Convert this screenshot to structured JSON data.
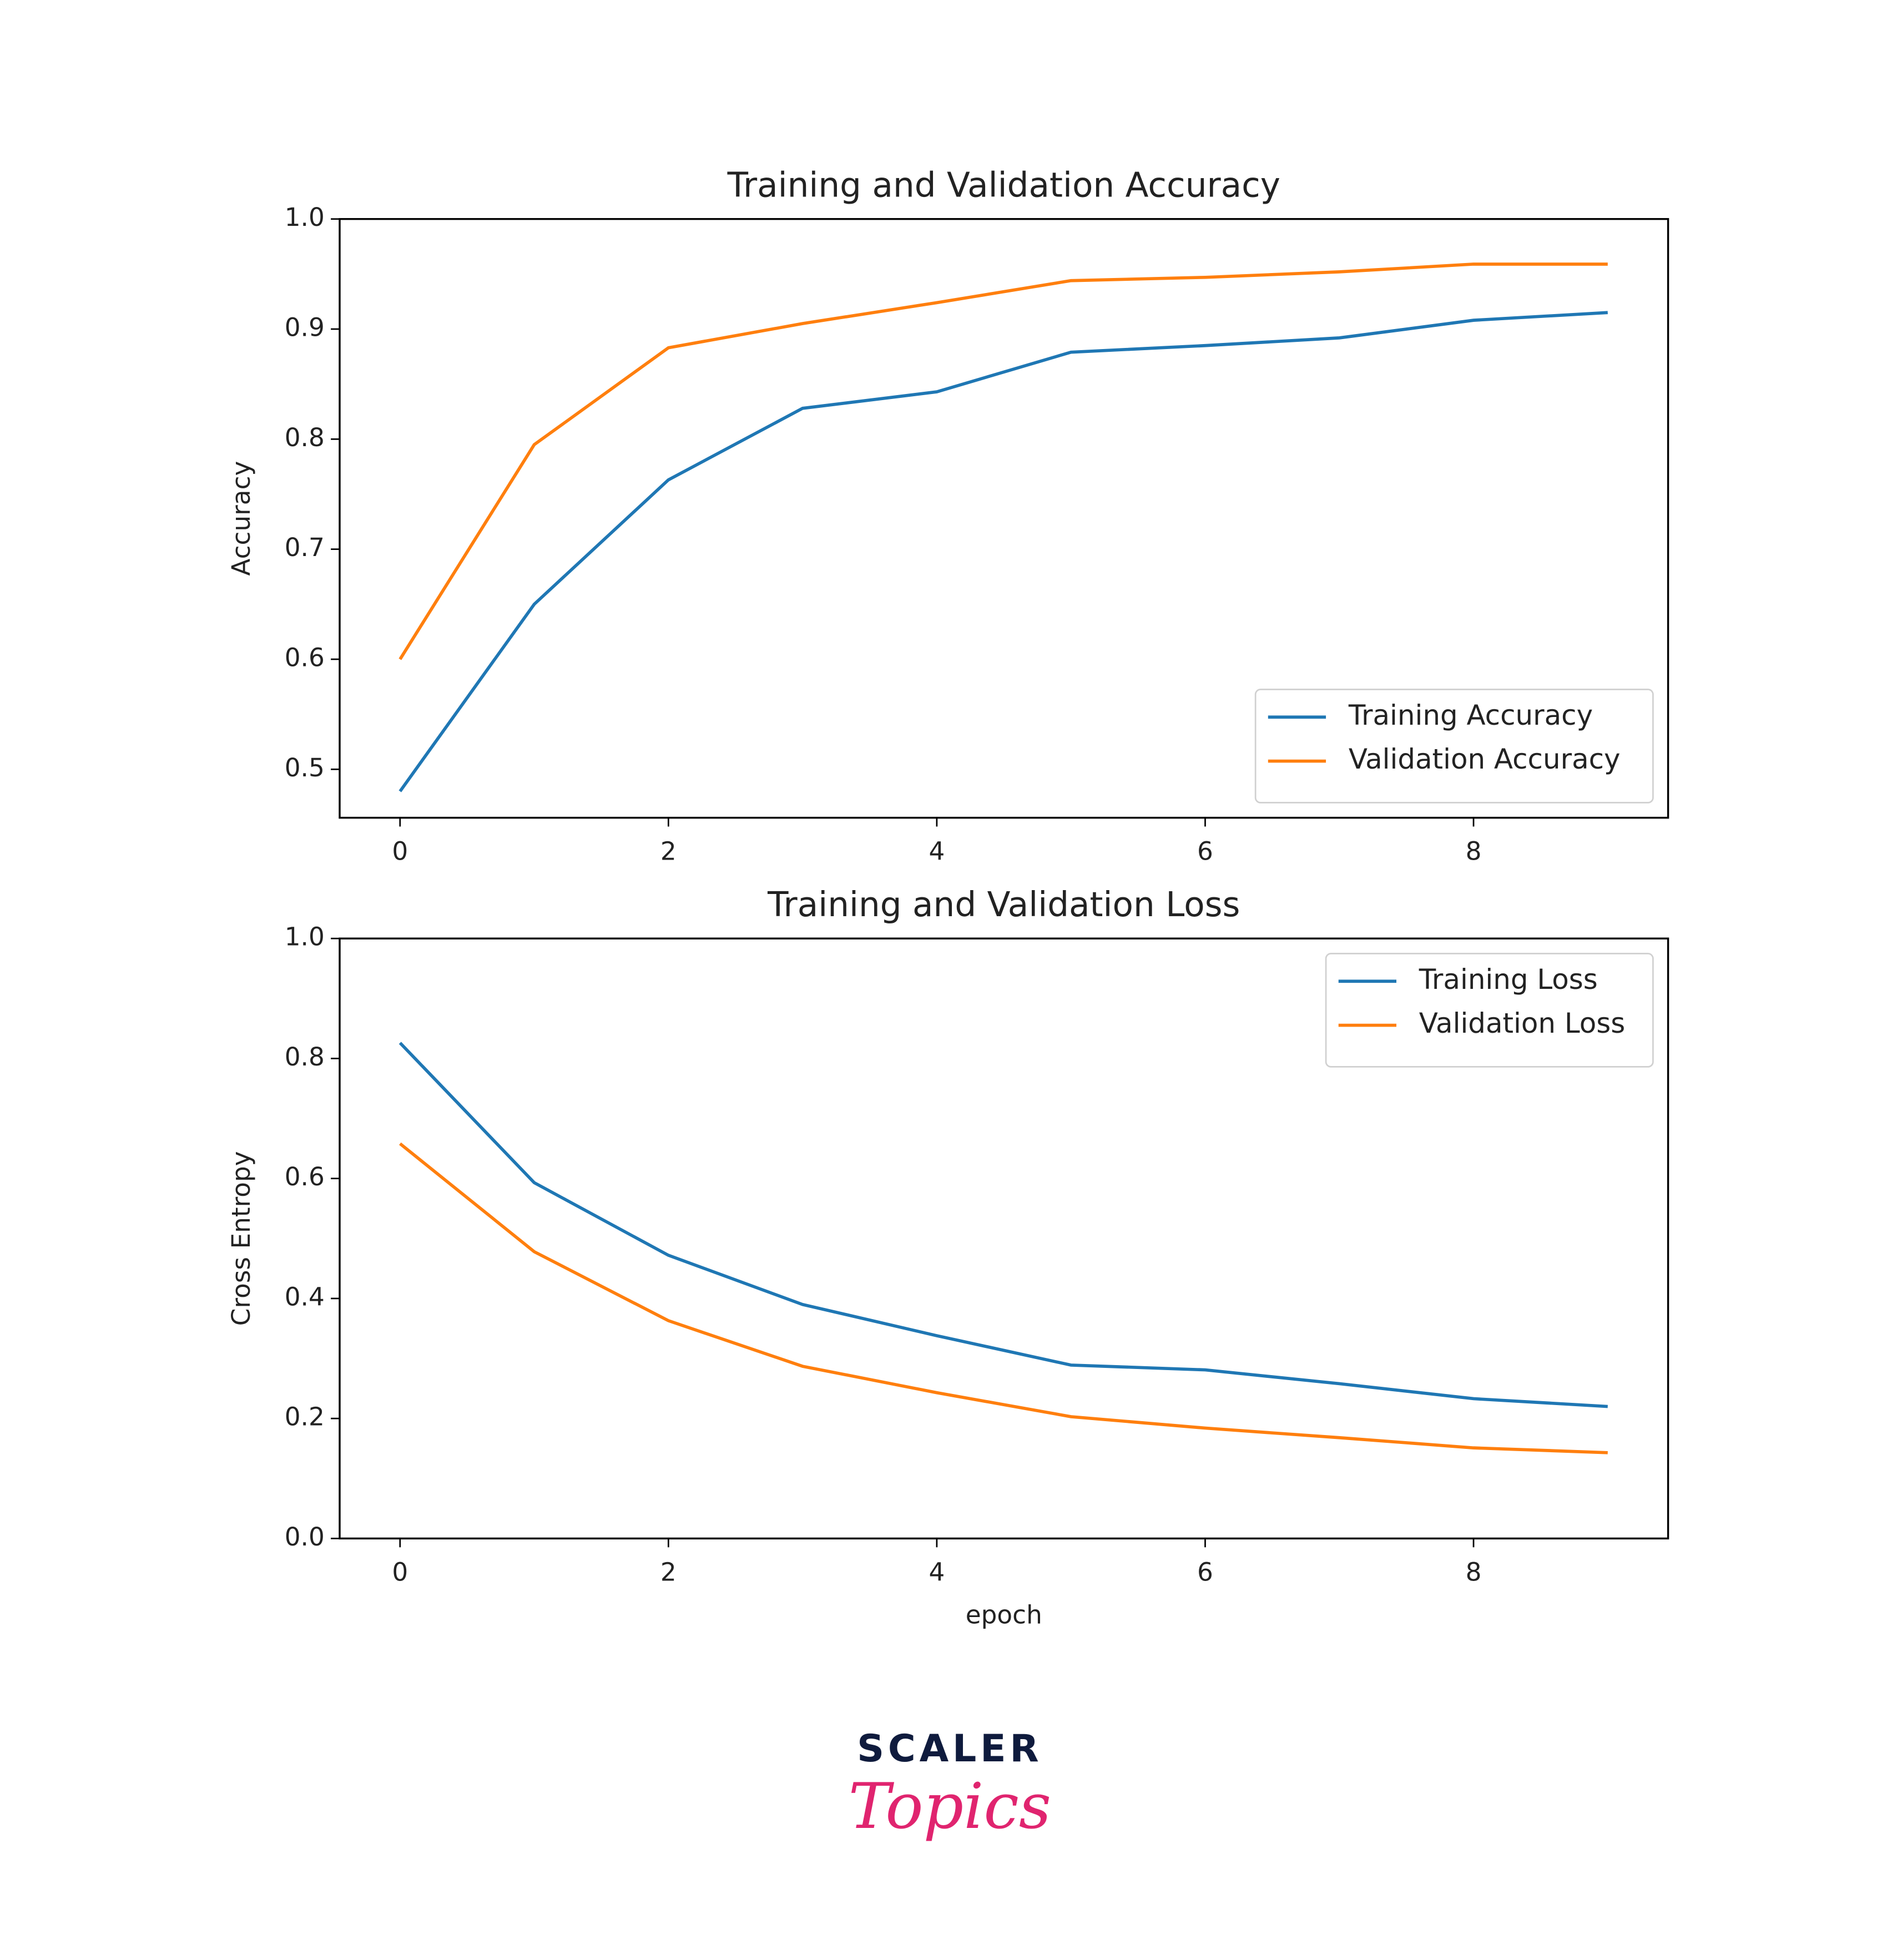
{
  "chart_data": [
    {
      "type": "line",
      "title": "Training and Validation Accuracy",
      "ylabel": "Accuracy",
      "x": [
        0,
        1,
        2,
        3,
        4,
        5,
        6,
        7,
        8,
        9
      ],
      "series": [
        {
          "name": "Training Accuracy",
          "color": "#1f77b4",
          "values": [
            0.48,
            0.65,
            0.763,
            0.828,
            0.843,
            0.879,
            0.885,
            0.892,
            0.908,
            0.915
          ]
        },
        {
          "name": "Validation Accuracy",
          "color": "#ff7f0e",
          "values": [
            0.6,
            0.795,
            0.883,
            0.905,
            0.924,
            0.944,
            0.947,
            0.952,
            0.959,
            0.959
          ]
        }
      ],
      "xlim": [
        -0.45,
        9.45
      ],
      "xticks": [
        0,
        2,
        4,
        6,
        8
      ],
      "ylim": [
        0.456,
        1.0
      ],
      "yticks": [
        0.5,
        0.6,
        0.7,
        0.8,
        0.9,
        {
          "value": 1,
          "label": "1.0"
        }
      ],
      "legend": "lower right"
    },
    {
      "type": "line",
      "title": "Training and Validation Loss",
      "ylabel": "Cross Entropy",
      "xlabel": "epoch",
      "x": [
        0,
        1,
        2,
        3,
        4,
        5,
        6,
        7,
        8,
        9
      ],
      "series": [
        {
          "name": "Training Loss",
          "color": "#1f77b4",
          "values": [
            0.826,
            0.593,
            0.472,
            0.39,
            0.338,
            0.289,
            0.281,
            0.258,
            0.233,
            0.22
          ]
        },
        {
          "name": "Validation Loss",
          "color": "#ff7f0e",
          "values": [
            0.658,
            0.478,
            0.363,
            0.287,
            0.243,
            0.203,
            0.184,
            0.168,
            0.151,
            0.143
          ]
        }
      ],
      "xlim": [
        -0.45,
        9.45
      ],
      "xticks": [
        0,
        2,
        4,
        6,
        8
      ],
      "ylim": [
        0,
        1
      ],
      "yticks": [
        {
          "value": 0,
          "label": "0.0"
        },
        0.2,
        0.4,
        0.6,
        0.8,
        {
          "value": 1,
          "label": "1.0"
        }
      ],
      "legend": "upper right"
    }
  ],
  "logo": {
    "brand": "SCALER",
    "sub": "Topics"
  }
}
